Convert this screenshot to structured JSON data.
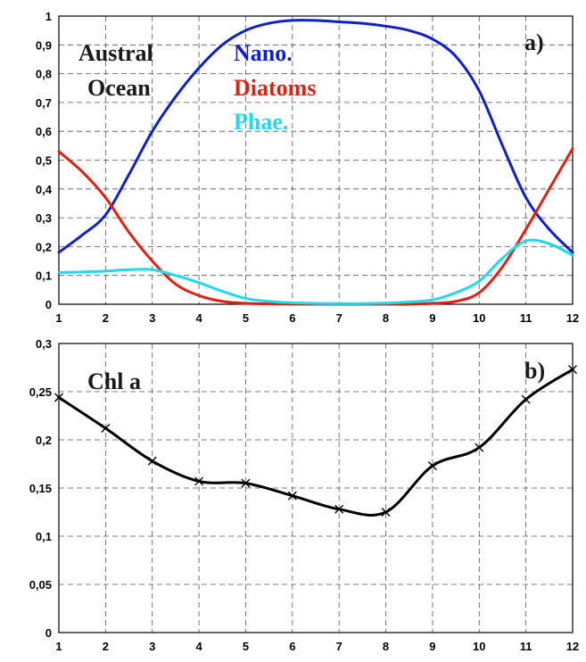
{
  "chart_data": [
    {
      "type": "line",
      "panel_label": "a)",
      "annotation": [
        "Austral",
        "Ocean"
      ],
      "x": [
        1,
        2,
        3,
        4,
        5,
        6,
        7,
        8,
        9,
        10,
        11,
        12
      ],
      "ylim": [
        0,
        1
      ],
      "xlim": [
        1,
        12
      ],
      "yticks": [
        "0",
        "0,1",
        "0,2",
        "0,3",
        "0,4",
        "0,5",
        "0,6",
        "0,7",
        "0,8",
        "0,9",
        "1"
      ],
      "xticks": [
        "1",
        "2",
        "3",
        "4",
        "5",
        "6",
        "7",
        "8",
        "9",
        "10",
        "11",
        "12"
      ],
      "grid": true,
      "series": [
        {
          "name": "Nano.",
          "color": "#1020c8",
          "x": [
            1,
            1.5,
            2,
            2.5,
            3,
            3.5,
            4,
            4.5,
            5,
            5.5,
            6,
            6.5,
            7,
            7.5,
            8,
            8.5,
            9,
            9.5,
            10,
            10.5,
            11,
            11.5,
            12
          ],
          "values": [
            0.18,
            0.24,
            0.31,
            0.45,
            0.6,
            0.72,
            0.82,
            0.9,
            0.95,
            0.975,
            0.985,
            0.985,
            0.98,
            0.975,
            0.965,
            0.95,
            0.92,
            0.86,
            0.74,
            0.55,
            0.37,
            0.26,
            0.18
          ]
        },
        {
          "name": "Diatoms",
          "color": "#e02010",
          "x": [
            1,
            1.5,
            2,
            2.5,
            3,
            3.5,
            4,
            4.5,
            5,
            6,
            7,
            8,
            8.5,
            9,
            9.5,
            10,
            10.5,
            11,
            11.5,
            12
          ],
          "values": [
            0.53,
            0.46,
            0.37,
            0.25,
            0.15,
            0.07,
            0.03,
            0.01,
            0.003,
            0,
            0,
            0,
            0,
            0.003,
            0.01,
            0.04,
            0.13,
            0.26,
            0.4,
            0.54
          ]
        },
        {
          "name": "Phae.",
          "color": "#20d8f0",
          "x": [
            1,
            1.5,
            2,
            2.5,
            3,
            3.5,
            4,
            4.5,
            5,
            5.5,
            6,
            7,
            8,
            8.5,
            9,
            9.5,
            10,
            10.5,
            11,
            11.5,
            12
          ],
          "values": [
            0.11,
            0.112,
            0.115,
            0.12,
            0.12,
            0.1,
            0.075,
            0.045,
            0.02,
            0.01,
            0.005,
            0.002,
            0.004,
            0.008,
            0.015,
            0.04,
            0.08,
            0.16,
            0.22,
            0.21,
            0.17
          ]
        }
      ]
    },
    {
      "type": "line",
      "panel_label": "b)",
      "x": [
        1,
        2,
        3,
        4,
        5,
        6,
        7,
        8,
        9,
        10,
        11,
        12
      ],
      "ylim": [
        0,
        0.3
      ],
      "xlim": [
        1,
        12
      ],
      "yticks": [
        "0",
        "0,05",
        "0,1",
        "0,15",
        "0,2",
        "0,25",
        "0,3"
      ],
      "xticks": [
        "1",
        "2",
        "3",
        "4",
        "5",
        "6",
        "7",
        "8",
        "9",
        "10",
        "11",
        "12"
      ],
      "grid": true,
      "series": [
        {
          "name": "Chl a",
          "color": "#000000",
          "values": [
            0.244,
            0.212,
            0.178,
            0.157,
            0.155,
            0.142,
            0.128,
            0.125,
            0.173,
            0.192,
            0.242,
            0.273
          ]
        }
      ]
    }
  ]
}
